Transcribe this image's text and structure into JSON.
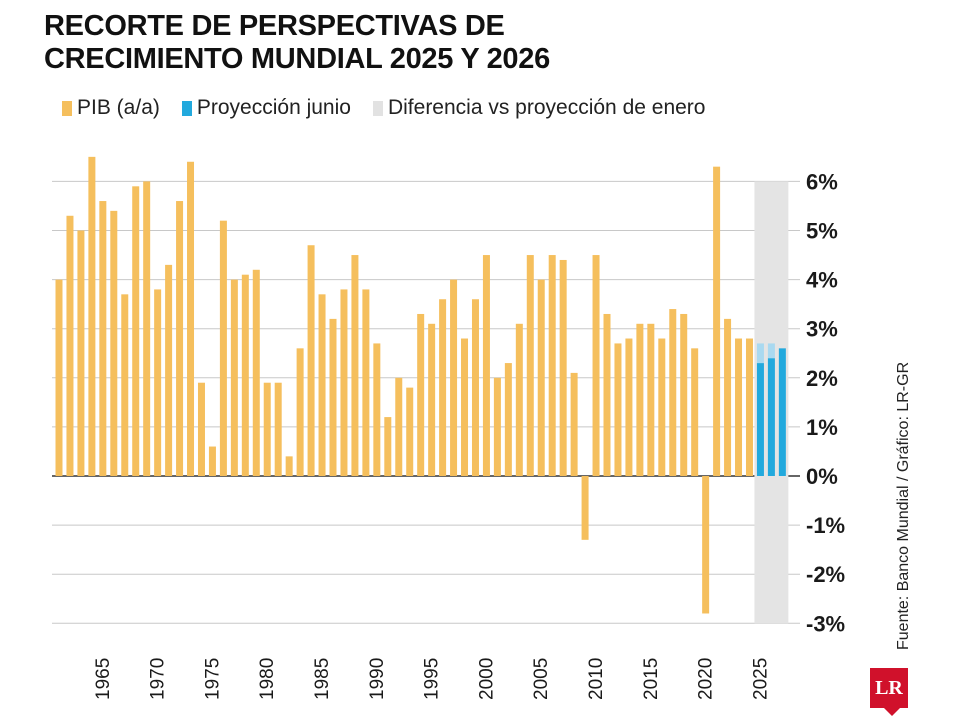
{
  "title_line1": "RECORTE DE PERSPECTIVAS DE",
  "title_line2": "CRECIMIENTO MUNDIAL 2025 Y 2026",
  "legend": [
    {
      "label": "PIB (a/a)",
      "color": "#f5bf5d"
    },
    {
      "label": "Proyección junio",
      "color": "#22a9dd"
    },
    {
      "label": "Diferencia vs proyección de enero",
      "color": "#e2e2e2"
    }
  ],
  "source": "Fuente: Banco Mundial / Gráfico: LR-GR",
  "logo_text": "LR",
  "colors": {
    "gdp": "#f5bf5d",
    "projection": "#22a9dd",
    "difference": "#a9d9f0",
    "shade": "#e4e4e4",
    "grid": "#c8c8c8"
  },
  "chart_data": {
    "type": "bar",
    "title": "RECORTE DE PERSPECTIVAS DE CRECIMIENTO MUNDIAL 2025 Y 2026",
    "xlabel": "",
    "ylabel": "",
    "ylim": [
      -3,
      6
    ],
    "y_ticks": [
      "6%",
      "5%",
      "4%",
      "3%",
      "2%",
      "1%",
      "0%",
      "-1%",
      "-2%",
      "-3%"
    ],
    "x_ticks": [
      "1965",
      "1970",
      "1975",
      "1980",
      "1985",
      "1990",
      "1995",
      "2000",
      "2005",
      "2010",
      "2015",
      "2020",
      "2025"
    ],
    "grid": true,
    "legend_position": "top-left",
    "series": [
      {
        "name": "PIB (a/a)",
        "x": [
          1961,
          1962,
          1963,
          1964,
          1965,
          1966,
          1967,
          1968,
          1969,
          1970,
          1971,
          1972,
          1973,
          1974,
          1975,
          1976,
          1977,
          1978,
          1979,
          1980,
          1981,
          1982,
          1983,
          1984,
          1985,
          1986,
          1987,
          1988,
          1989,
          1990,
          1991,
          1992,
          1993,
          1994,
          1995,
          1996,
          1997,
          1998,
          1999,
          2000,
          2001,
          2002,
          2003,
          2004,
          2005,
          2006,
          2007,
          2008,
          2009,
          2010,
          2011,
          2012,
          2013,
          2014,
          2015,
          2016,
          2017,
          2018,
          2019,
          2020,
          2021,
          2022,
          2023,
          2024
        ],
        "values": [
          4.0,
          5.3,
          5.0,
          6.5,
          5.6,
          5.4,
          3.7,
          5.9,
          6.0,
          3.8,
          4.3,
          5.6,
          6.4,
          1.9,
          0.6,
          5.2,
          4.0,
          4.1,
          4.2,
          1.9,
          1.9,
          0.4,
          2.6,
          4.7,
          3.7,
          3.2,
          3.8,
          4.5,
          3.8,
          2.7,
          1.2,
          2.0,
          1.8,
          3.3,
          3.1,
          3.6,
          4.0,
          2.8,
          3.6,
          4.5,
          2.0,
          2.3,
          3.1,
          4.5,
          4.0,
          4.5,
          4.4,
          2.1,
          -1.3,
          4.5,
          3.3,
          2.7,
          2.8,
          3.1,
          3.1,
          2.8,
          3.4,
          3.3,
          2.6,
          -2.8,
          6.3,
          3.2,
          2.8,
          2.8
        ]
      },
      {
        "name": "Proyección junio",
        "x": [
          2025,
          2026,
          2027
        ],
        "values": [
          2.3,
          2.4,
          2.6
        ]
      },
      {
        "name": "Diferencia vs proyección de enero",
        "x": [
          2025,
          2026
        ],
        "values": [
          0.4,
          0.3
        ]
      }
    ]
  }
}
